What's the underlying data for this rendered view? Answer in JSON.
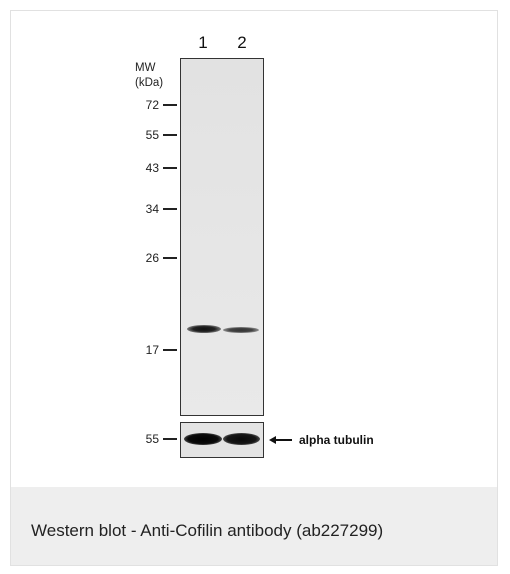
{
  "figure": {
    "lanes": [
      "1",
      "2"
    ],
    "mw_title_line1": "MW",
    "mw_title_line2": "(kDa)",
    "markers": [
      {
        "label": "72",
        "kda": 72
      },
      {
        "label": "55",
        "kda": 55
      },
      {
        "label": "43",
        "kda": 43
      },
      {
        "label": "34",
        "kda": 34
      },
      {
        "label": "26",
        "kda": 26
      },
      {
        "label": "17",
        "kda": 17
      }
    ],
    "control": {
      "marker_label": "55",
      "annotation": "alpha tubulin"
    },
    "bands": [
      {
        "lane": 1,
        "intensity": 0.95
      },
      {
        "lane": 2,
        "intensity": 0.7
      }
    ],
    "control_bands": [
      {
        "lane": 1,
        "intensity": 1.0
      },
      {
        "lane": 2,
        "intensity": 0.9
      }
    ]
  },
  "caption": "Western blot - Anti-Cofilin antibody (ab227299)"
}
